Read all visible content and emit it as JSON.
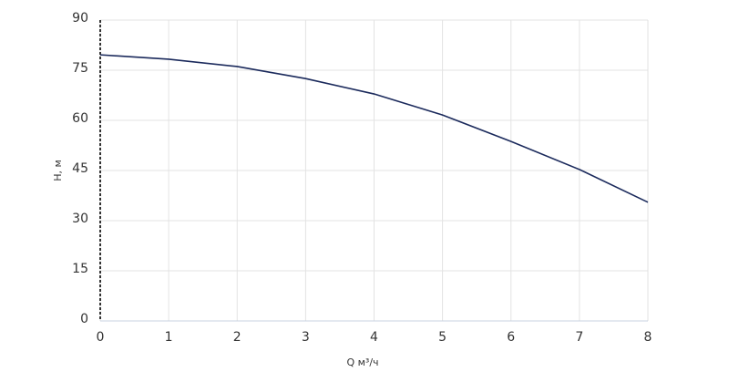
{
  "chart_data": {
    "type": "line",
    "x_label": "Q м³/ч",
    "y_label": "H, м",
    "x": [
      0,
      1,
      2,
      3,
      4,
      5,
      6,
      7,
      8
    ],
    "series": [
      {
        "name": null,
        "color": "#1b2a5c",
        "values": [
          79.6,
          78.3,
          76.1,
          72.5,
          67.9,
          61.6,
          53.7,
          45.3,
          35.5
        ]
      }
    ],
    "xlim": [
      0,
      8
    ],
    "xticks": [
      0,
      1,
      2,
      3,
      4,
      5,
      6,
      7,
      8
    ],
    "ylim": [
      0,
      90
    ],
    "yticks": [
      0,
      15,
      30,
      45,
      60,
      75,
      90
    ],
    "grid": true
  }
}
